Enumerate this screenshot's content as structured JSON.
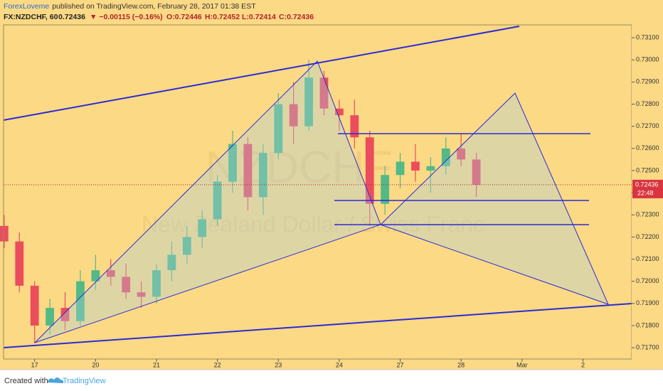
{
  "header": {
    "author": "ForexLoveme",
    "published": "published on TradingView.com, February 28, 2017 01:38 EST",
    "symbol": "FX:NZDCHF, 60",
    "price": "0.72436",
    "change": "▼ −0.00115 (−0.16%)",
    "ohlc": [
      "O:0.72446",
      "H:0.72452",
      "L:0.72414",
      "C:0.72436"
    ]
  },
  "chart_data": {
    "type": "candlestick",
    "watermark": "NZDCHF",
    "watermark_sub": "New Zealand Dollar / Swiss Franc",
    "up_color": "#53b987",
    "down_color": "#eb4d5c",
    "x": [
      -0.5,
      -0.25,
      0,
      0.25,
      0.5,
      0.75,
      1,
      1.25,
      1.5,
      1.75,
      2,
      2.25,
      2.5,
      2.75,
      3,
      3.25,
      3.5,
      3.75,
      4,
      4.25,
      4.5,
      4.75,
      5,
      5.25,
      5.5,
      5.75,
      6,
      6.25,
      6.5,
      6.75,
      7,
      7.25
    ],
    "open": [
      0.7225,
      0.7218,
      0.7198,
      0.718,
      0.7188,
      0.7182,
      0.72,
      0.7205,
      0.7202,
      0.7195,
      0.7193,
      0.7205,
      0.7212,
      0.722,
      0.7228,
      0.7245,
      0.7262,
      0.7238,
      0.7258,
      0.728,
      0.727,
      0.7292,
      0.7278,
      0.7275,
      0.7265,
      0.7235,
      0.7248,
      0.7254,
      0.725,
      0.7252,
      0.726,
      0.7255
    ],
    "high": [
      0.723,
      0.7222,
      0.72,
      0.7192,
      0.7195,
      0.7205,
      0.7212,
      0.721,
      0.7208,
      0.72,
      0.7208,
      0.7218,
      0.7225,
      0.7232,
      0.7248,
      0.7268,
      0.7265,
      0.7262,
      0.7285,
      0.729,
      0.73,
      0.7295,
      0.7282,
      0.7282,
      0.7268,
      0.7252,
      0.7258,
      0.7262,
      0.7256,
      0.7265,
      0.7267,
      0.7258
    ],
    "low": [
      0.7215,
      0.7195,
      0.7172,
      0.7176,
      0.7178,
      0.718,
      0.7196,
      0.7198,
      0.7192,
      0.7188,
      0.719,
      0.72,
      0.7208,
      0.7215,
      0.7225,
      0.724,
      0.7232,
      0.723,
      0.7255,
      0.7262,
      0.7268,
      0.7275,
      0.7268,
      0.726,
      0.7225,
      0.723,
      0.7242,
      0.7245,
      0.724,
      0.7248,
      0.7252,
      0.7238
    ],
    "close": [
      0.7218,
      0.7198,
      0.718,
      0.7188,
      0.7182,
      0.72,
      0.7205,
      0.7202,
      0.7195,
      0.7193,
      0.7205,
      0.7212,
      0.722,
      0.7228,
      0.7245,
      0.7262,
      0.7238,
      0.7258,
      0.728,
      0.727,
      0.7292,
      0.7278,
      0.7275,
      0.7265,
      0.7235,
      0.7248,
      0.7254,
      0.725,
      0.7252,
      0.726,
      0.7255,
      0.72436
    ],
    "xlim": [
      -0.51,
      9.8
    ],
    "xticks": [
      {
        "value": 0,
        "label": "17"
      },
      {
        "value": 1,
        "label": "20"
      },
      {
        "value": 2,
        "label": "21"
      },
      {
        "value": 3,
        "label": "22"
      },
      {
        "value": 4,
        "label": "23"
      },
      {
        "value": 5,
        "label": "24"
      },
      {
        "value": 6,
        "label": "27"
      },
      {
        "value": 7,
        "label": "28"
      },
      {
        "value": 8,
        "label": "Mar"
      },
      {
        "value": 9,
        "label": "2"
      }
    ],
    "ylim": [
      0.71649,
      0.73158
    ],
    "yticks": [
      {
        "value": 0.731,
        "label": "0.73100"
      },
      {
        "value": 0.73,
        "label": "0.73000"
      },
      {
        "value": 0.729,
        "label": "0.72900"
      },
      {
        "value": 0.728,
        "label": "0.72800"
      },
      {
        "value": 0.727,
        "label": "0.72700"
      },
      {
        "value": 0.726,
        "label": "0.72600"
      },
      {
        "value": 0.725,
        "label": "0.72500"
      },
      {
        "value": 0.724,
        "label": "0.72400"
      },
      {
        "value": 0.723,
        "label": "0.72300"
      },
      {
        "value": 0.722,
        "label": "0.72200"
      },
      {
        "value": 0.721,
        "label": "0.72100"
      },
      {
        "value": 0.72,
        "label": "0.72000"
      },
      {
        "value": 0.719,
        "label": "0.71900"
      },
      {
        "value": 0.718,
        "label": "0.71800"
      },
      {
        "value": 0.717,
        "label": "0.71700"
      }
    ],
    "last_price": {
      "value": 0.72436,
      "label": "0.72436"
    },
    "countdown": "22:48"
  },
  "footer": {
    "created": "Created with",
    "brand": "TradingView"
  }
}
